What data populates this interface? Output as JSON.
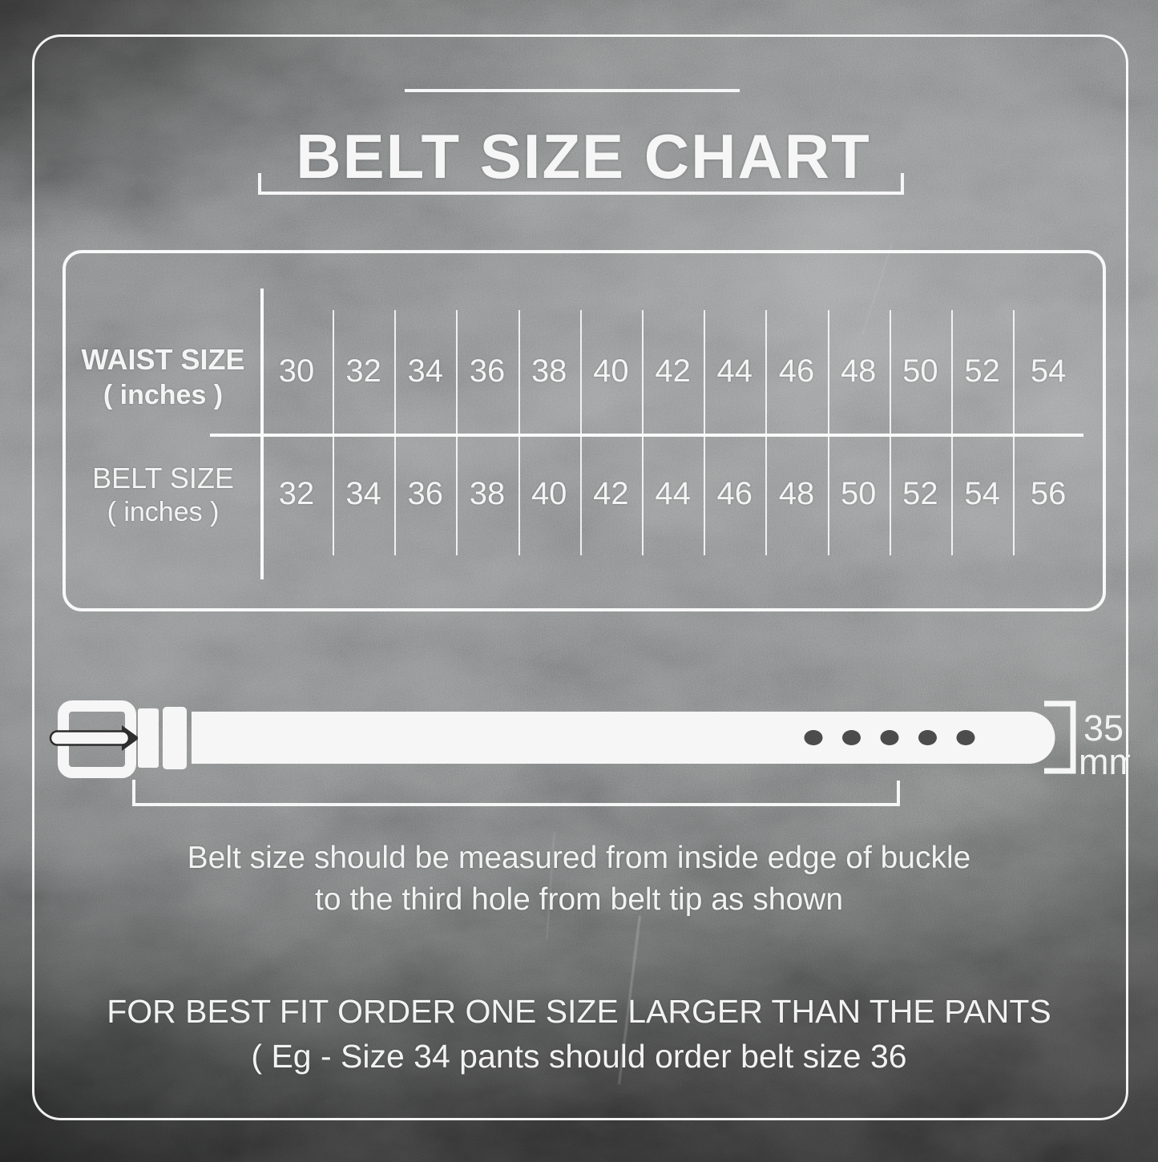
{
  "title": "BELT SIZE CHART",
  "table": {
    "row1_label_line1": "WAIST SIZE",
    "row1_label_line2": "( inches )",
    "row2_label_line1": "BELT SIZE",
    "row2_label_line2": "( inches )"
  },
  "belt": {
    "width_value": "35",
    "width_unit": "mm",
    "holes_count": 5
  },
  "notes": {
    "measure_line1": "Belt size should be measured from inside edge of buckle",
    "measure_line2": "to the third hole from belt tip as shown",
    "fit_line1": "FOR BEST FIT ORDER ONE SIZE LARGER THAN THE PANTS",
    "fit_line2": "( Eg - Size 34 pants should order belt size 36"
  },
  "colors": {
    "text_and_lines": "#f6f6f6",
    "background_dark": "#3a3a3a",
    "background_mid": "#7f8182",
    "belt_hole": "#3d3d3d"
  },
  "chart_data": {
    "type": "table",
    "title": "BELT SIZE CHART",
    "rows": [
      {
        "label": "WAIST SIZE ( inches )",
        "values": [
          30,
          32,
          34,
          36,
          38,
          40,
          42,
          44,
          46,
          48,
          50,
          52,
          54
        ]
      },
      {
        "label": "BELT SIZE ( inches )",
        "values": [
          32,
          34,
          36,
          38,
          40,
          42,
          44,
          46,
          48,
          50,
          52,
          54,
          56
        ]
      }
    ],
    "annotations": [
      "Belt strap width: 35 mm",
      "Belt size should be measured from inside edge of buckle to the third hole from belt tip as shown",
      "FOR BEST FIT ORDER ONE SIZE LARGER THAN THE PANTS ( Eg - Size 34 pants should order belt size 36"
    ],
    "layout": "two-row matrix, 13 columns, white rules on dark slate background"
  }
}
